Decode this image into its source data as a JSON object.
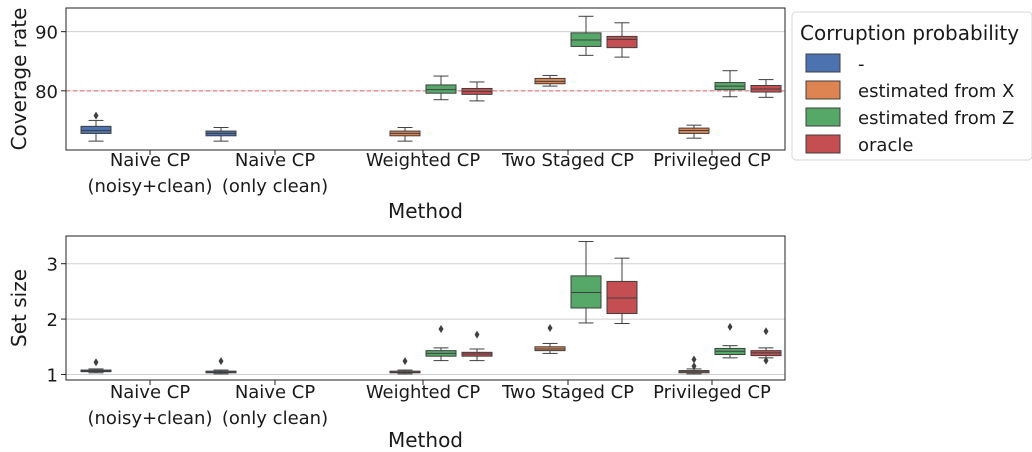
{
  "legend": {
    "title": "Corruption probability",
    "placement": "right-outside",
    "items": [
      {
        "label": "-",
        "color": "#4c72b0"
      },
      {
        "label": "estimated from X",
        "color": "#dd8452"
      },
      {
        "label": "estimated from Z",
        "color": "#55a868"
      },
      {
        "label": "oracle",
        "color": "#c44e52"
      }
    ]
  },
  "chart_data": [
    {
      "type": "box",
      "xlabel": "Method",
      "ylabel": "Coverage rate",
      "ylim": [
        70,
        94
      ],
      "yticks": [
        80,
        90
      ],
      "grid": "horizontal",
      "reference_line": {
        "y": 80,
        "style": "dashed",
        "color": "#e06666"
      },
      "categories": [
        [
          "Naive CP",
          "(noisy+clean)"
        ],
        [
          "Naive CP",
          "(only clean)"
        ],
        [
          "Weighted CP"
        ],
        [
          "Two Staged CP"
        ],
        [
          "Privileged CP"
        ]
      ],
      "boxes": [
        {
          "category": 0,
          "series": 0,
          "whislo": 71.5,
          "q1": 72.8,
          "med": 73.3,
          "q3": 74.0,
          "whishi": 75.0,
          "fliers": [
            75.8
          ]
        },
        {
          "category": 1,
          "series": 0,
          "whislo": 71.5,
          "q1": 72.4,
          "med": 72.8,
          "q3": 73.2,
          "whishi": 73.8,
          "fliers": []
        },
        {
          "category": 2,
          "series": 1,
          "whislo": 71.5,
          "q1": 72.4,
          "med": 72.8,
          "q3": 73.2,
          "whishi": 73.8,
          "fliers": []
        },
        {
          "category": 2,
          "series": 2,
          "whislo": 78.5,
          "q1": 79.6,
          "med": 80.2,
          "q3": 81.0,
          "whishi": 82.5,
          "fliers": []
        },
        {
          "category": 2,
          "series": 3,
          "whislo": 78.3,
          "q1": 79.4,
          "med": 79.9,
          "q3": 80.4,
          "whishi": 81.5,
          "fliers": []
        },
        {
          "category": 3,
          "series": 1,
          "whislo": 80.8,
          "q1": 81.2,
          "med": 81.6,
          "q3": 82.1,
          "whishi": 82.6,
          "fliers": []
        },
        {
          "category": 3,
          "series": 2,
          "whislo": 86.0,
          "q1": 87.5,
          "med": 88.6,
          "q3": 89.8,
          "whishi": 92.6,
          "fliers": []
        },
        {
          "category": 3,
          "series": 3,
          "whislo": 85.7,
          "q1": 87.3,
          "med": 88.7,
          "q3": 89.2,
          "whishi": 91.5,
          "fliers": []
        },
        {
          "category": 4,
          "series": 1,
          "whislo": 72.0,
          "q1": 72.8,
          "med": 73.3,
          "q3": 73.7,
          "whishi": 74.2,
          "fliers": []
        },
        {
          "category": 4,
          "series": 2,
          "whislo": 79.0,
          "q1": 80.2,
          "med": 80.8,
          "q3": 81.4,
          "whishi": 83.4,
          "fliers": []
        },
        {
          "category": 4,
          "series": 3,
          "whislo": 78.9,
          "q1": 79.8,
          "med": 80.3,
          "q3": 80.9,
          "whishi": 81.9,
          "fliers": []
        }
      ]
    },
    {
      "type": "box",
      "xlabel": "Method",
      "ylabel": "Set size",
      "ylim": [
        0.9,
        3.5
      ],
      "yticks": [
        1,
        2,
        3
      ],
      "grid": "horizontal",
      "categories": [
        [
          "Naive CP",
          "(noisy+clean)"
        ],
        [
          "Naive CP",
          "(only clean)"
        ],
        [
          "Weighted CP"
        ],
        [
          "Two Staged CP"
        ],
        [
          "Privileged CP"
        ]
      ],
      "boxes": [
        {
          "category": 0,
          "series": 0,
          "whislo": 1.03,
          "q1": 1.05,
          "med": 1.06,
          "q3": 1.08,
          "whishi": 1.1,
          "fliers": [
            1.22
          ]
        },
        {
          "category": 1,
          "series": 0,
          "whislo": 1.01,
          "q1": 1.03,
          "med": 1.04,
          "q3": 1.06,
          "whishi": 1.08,
          "fliers": [
            1.24
          ]
        },
        {
          "category": 2,
          "series": 1,
          "whislo": 1.01,
          "q1": 1.03,
          "med": 1.04,
          "q3": 1.06,
          "whishi": 1.08,
          "fliers": [
            1.24
          ]
        },
        {
          "category": 2,
          "series": 2,
          "whislo": 1.25,
          "q1": 1.33,
          "med": 1.38,
          "q3": 1.43,
          "whishi": 1.48,
          "fliers": [
            1.82
          ]
        },
        {
          "category": 2,
          "series": 3,
          "whislo": 1.25,
          "q1": 1.33,
          "med": 1.37,
          "q3": 1.4,
          "whishi": 1.46,
          "fliers": [
            1.72
          ]
        },
        {
          "category": 3,
          "series": 1,
          "whislo": 1.38,
          "q1": 1.43,
          "med": 1.46,
          "q3": 1.5,
          "whishi": 1.56,
          "fliers": [
            1.84
          ]
        },
        {
          "category": 3,
          "series": 2,
          "whislo": 1.93,
          "q1": 2.2,
          "med": 2.48,
          "q3": 2.78,
          "whishi": 3.4,
          "fliers": []
        },
        {
          "category": 3,
          "series": 3,
          "whislo": 1.92,
          "q1": 2.1,
          "med": 2.38,
          "q3": 2.68,
          "whishi": 3.1,
          "fliers": []
        },
        {
          "category": 4,
          "series": 1,
          "whislo": 1.01,
          "q1": 1.03,
          "med": 1.05,
          "q3": 1.07,
          "whishi": 1.1,
          "fliers": [
            1.15,
            1.27
          ]
        },
        {
          "category": 4,
          "series": 2,
          "whislo": 1.3,
          "q1": 1.36,
          "med": 1.42,
          "q3": 1.47,
          "whishi": 1.52,
          "fliers": [
            1.86
          ]
        },
        {
          "category": 4,
          "series": 3,
          "whislo": 1.3,
          "q1": 1.34,
          "med": 1.39,
          "q3": 1.43,
          "whishi": 1.48,
          "fliers": [
            1.25,
            1.78
          ]
        }
      ]
    }
  ]
}
